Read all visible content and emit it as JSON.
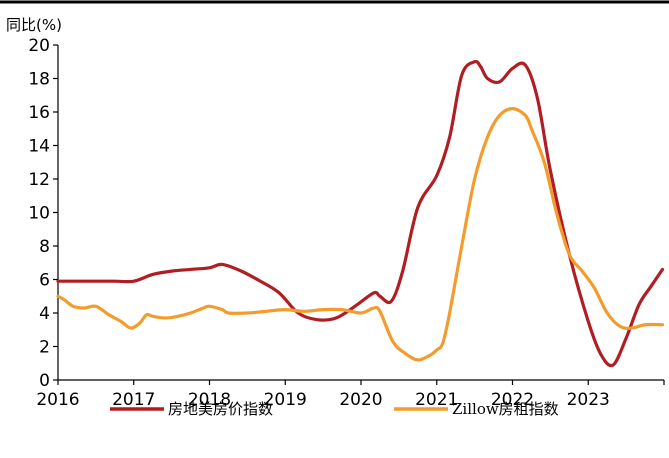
{
  "chart_data": {
    "type": "line",
    "ylabel": "同比(%)",
    "ylim": [
      0,
      20
    ],
    "yticks": [
      "0",
      "2",
      "4",
      "6",
      "8",
      "10",
      "12",
      "14",
      "16",
      "18",
      "20"
    ],
    "xlim": [
      2016.0,
      2024.0
    ],
    "xticks": [
      "2016",
      "2017",
      "2018",
      "2019",
      "2020",
      "2021",
      "2022",
      "2023"
    ],
    "legend_position": "bottom",
    "grid": false,
    "series": [
      {
        "name": "房地美房价指数",
        "color": "#B01E23",
        "x": [
          2016.0,
          2016.25,
          2016.5,
          2016.75,
          2017.0,
          2017.25,
          2017.5,
          2017.75,
          2018.0,
          2018.17,
          2018.42,
          2018.67,
          2018.92,
          2019.17,
          2019.42,
          2019.67,
          2019.92,
          2020.17,
          2020.25,
          2020.4,
          2020.55,
          2020.75,
          2021.0,
          2021.17,
          2021.33,
          2021.5,
          2021.58,
          2021.67,
          2021.83,
          2022.0,
          2022.17,
          2022.33,
          2022.5,
          2022.75,
          2023.0,
          2023.17,
          2023.33,
          2023.5,
          2023.67,
          2023.83,
          2023.98
        ],
        "values": [
          5.9,
          5.9,
          5.9,
          5.9,
          5.9,
          6.3,
          6.5,
          6.6,
          6.7,
          6.9,
          6.5,
          5.9,
          5.2,
          4.0,
          3.6,
          3.7,
          4.4,
          5.2,
          5.0,
          4.7,
          6.5,
          10.3,
          12.2,
          14.5,
          18.2,
          19.0,
          18.7,
          18.0,
          17.8,
          18.6,
          18.8,
          16.8,
          12.5,
          7.5,
          3.5,
          1.5,
          0.9,
          2.5,
          4.5,
          5.6,
          6.6
        ]
      },
      {
        "name": "Zillow房租指数",
        "color": "#F39C2E",
        "x": [
          2016.0,
          2016.08,
          2016.2,
          2016.35,
          2016.5,
          2016.67,
          2016.83,
          2016.96,
          2017.08,
          2017.17,
          2017.25,
          2017.42,
          2017.58,
          2017.75,
          2017.92,
          2018.0,
          2018.17,
          2018.25,
          2018.5,
          2018.75,
          2019.0,
          2019.25,
          2019.5,
          2019.75,
          2020.0,
          2020.17,
          2020.25,
          2020.42,
          2020.58,
          2020.75,
          2020.92,
          2021.0,
          2021.08,
          2021.17,
          2021.33,
          2021.5,
          2021.67,
          2021.83,
          2022.0,
          2022.17,
          2022.25,
          2022.42,
          2022.58,
          2022.75,
          2022.92,
          2023.08,
          2023.25,
          2023.42,
          2023.58,
          2023.75,
          2023.98
        ],
        "values": [
          5.0,
          4.8,
          4.4,
          4.3,
          4.4,
          3.9,
          3.5,
          3.1,
          3.4,
          3.9,
          3.8,
          3.7,
          3.8,
          4.0,
          4.3,
          4.4,
          4.2,
          4.0,
          4.0,
          4.1,
          4.2,
          4.1,
          4.2,
          4.2,
          4.0,
          4.3,
          4.1,
          2.3,
          1.6,
          1.2,
          1.5,
          1.8,
          2.2,
          4.0,
          8.0,
          12.0,
          14.5,
          15.8,
          16.2,
          15.8,
          15.0,
          13.0,
          10.0,
          7.5,
          6.5,
          5.5,
          4.0,
          3.2,
          3.1,
          3.3,
          3.3
        ]
      }
    ]
  }
}
